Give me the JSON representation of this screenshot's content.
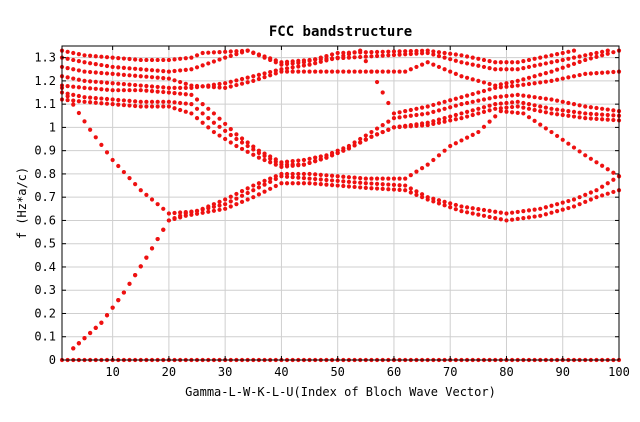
{
  "chart_data": {
    "type": "scatter",
    "title": "FCC bandstructure",
    "xlabel": "Gamma-L-W-K-L-U(Index of Bloch Wave Vector)",
    "ylabel": "f (Hz*a/c)",
    "xlim": [
      1,
      100
    ],
    "ylim": [
      0,
      1.35
    ],
    "xticks": [
      10,
      20,
      30,
      40,
      50,
      60,
      70,
      80,
      90,
      100
    ],
    "yticks": [
      0,
      0.1,
      0.2,
      0.3,
      0.4,
      0.5,
      0.6,
      0.7,
      0.8,
      0.9,
      1,
      1.1,
      1.2,
      1.3
    ],
    "grid": true,
    "marker_color": "#ee1111",
    "series": [
      {
        "values": [
          [
            1,
            0
          ],
          [
            12,
            0
          ],
          [
            25,
            0
          ],
          [
            40,
            0
          ],
          [
            55,
            0
          ],
          [
            70,
            0
          ],
          [
            85,
            0
          ],
          [
            100,
            0
          ]
        ]
      },
      {
        "values": [
          [
            3,
            0.05
          ],
          [
            8,
            0.16
          ],
          [
            12,
            0.29
          ],
          [
            16,
            0.44
          ],
          [
            20,
            0.6
          ],
          [
            23,
            0.62
          ],
          [
            30,
            0.65
          ],
          [
            35,
            0.7
          ],
          [
            40,
            0.76
          ],
          [
            45,
            0.76
          ],
          [
            50,
            0.75
          ],
          [
            55,
            0.74
          ],
          [
            62,
            0.73
          ],
          [
            66,
            0.69
          ],
          [
            72,
            0.64
          ],
          [
            80,
            0.6
          ],
          [
            86,
            0.62
          ],
          [
            92,
            0.66
          ],
          [
            96,
            0.7
          ],
          [
            100,
            0.73
          ]
        ]
      },
      {
        "values": [
          [
            3,
            0.05
          ],
          [
            8,
            0.16
          ],
          [
            12,
            0.29
          ],
          [
            16,
            0.44
          ],
          [
            20,
            0.6
          ],
          [
            23,
            0.63
          ],
          [
            30,
            0.67
          ],
          [
            35,
            0.73
          ],
          [
            40,
            0.79
          ],
          [
            45,
            0.78
          ],
          [
            50,
            0.77
          ],
          [
            55,
            0.76
          ],
          [
            62,
            0.75
          ],
          [
            66,
            0.7
          ],
          [
            72,
            0.66
          ],
          [
            80,
            0.63
          ],
          [
            86,
            0.65
          ],
          [
            92,
            0.69
          ],
          [
            96,
            0.73
          ],
          [
            100,
            0.79
          ]
        ]
      },
      {
        "values": [
          [
            1,
            1.17
          ],
          [
            6,
            0.99
          ],
          [
            10,
            0.86
          ],
          [
            15,
            0.73
          ],
          [
            20,
            0.63
          ],
          [
            25,
            0.64
          ],
          [
            30,
            0.69
          ],
          [
            35,
            0.75
          ],
          [
            40,
            0.8
          ],
          [
            45,
            0.8
          ],
          [
            50,
            0.79
          ],
          [
            55,
            0.78
          ],
          [
            62,
            0.78
          ],
          [
            66,
            0.84
          ],
          [
            70,
            0.92
          ],
          [
            75,
            0.98
          ],
          [
            79,
            1.07
          ],
          [
            83,
            1.06
          ],
          [
            88,
            0.98
          ],
          [
            94,
            0.88
          ],
          [
            100,
            0.79
          ]
        ]
      },
      {
        "values": [
          [
            1,
            1.12
          ],
          [
            5,
            1.11
          ],
          [
            10,
            1.1
          ],
          [
            15,
            1.09
          ],
          [
            20,
            1.09
          ],
          [
            24,
            1.06
          ],
          [
            28,
            0.98
          ],
          [
            32,
            0.92
          ],
          [
            36,
            0.87
          ],
          [
            40,
            0.83
          ],
          [
            44,
            0.84
          ],
          [
            48,
            0.87
          ],
          [
            52,
            0.91
          ],
          [
            56,
            0.96
          ],
          [
            60,
            1.0
          ],
          [
            66,
            1.01
          ],
          [
            72,
            1.04
          ],
          [
            78,
            1.08
          ],
          [
            82,
            1.09
          ],
          [
            88,
            1.06
          ],
          [
            94,
            1.04
          ],
          [
            100,
            1.03
          ]
        ]
      },
      {
        "values": [
          [
            1,
            1.15
          ],
          [
            5,
            1.13
          ],
          [
            10,
            1.12
          ],
          [
            15,
            1.11
          ],
          [
            20,
            1.11
          ],
          [
            24,
            1.1
          ],
          [
            28,
            1.02
          ],
          [
            32,
            0.95
          ],
          [
            36,
            0.89
          ],
          [
            40,
            0.84
          ],
          [
            44,
            0.84
          ],
          [
            48,
            0.87
          ],
          [
            52,
            0.91
          ],
          [
            56,
            0.96
          ],
          [
            60,
            1.0
          ],
          [
            66,
            1.02
          ],
          [
            72,
            1.06
          ],
          [
            78,
            1.1
          ],
          [
            82,
            1.11
          ],
          [
            88,
            1.08
          ],
          [
            94,
            1.06
          ],
          [
            100,
            1.05
          ]
        ]
      },
      {
        "values": [
          [
            1,
            1.18
          ],
          [
            5,
            1.17
          ],
          [
            10,
            1.16
          ],
          [
            15,
            1.16
          ],
          [
            20,
            1.15
          ],
          [
            24,
            1.14
          ],
          [
            28,
            1.06
          ],
          [
            32,
            0.97
          ],
          [
            36,
            0.9
          ],
          [
            40,
            0.85
          ],
          [
            44,
            0.86
          ],
          [
            48,
            0.88
          ],
          [
            52,
            0.92
          ],
          [
            56,
            0.98
          ],
          [
            60,
            1.04
          ],
          [
            66,
            1.06
          ],
          [
            72,
            1.1
          ],
          [
            78,
            1.13
          ],
          [
            82,
            1.14
          ],
          [
            88,
            1.12
          ],
          [
            94,
            1.09
          ],
          [
            100,
            1.07
          ]
        ]
      },
      {
        "values": [
          [
            1,
            1.22
          ],
          [
            5,
            1.2
          ],
          [
            10,
            1.19
          ],
          [
            15,
            1.18
          ],
          [
            20,
            1.17
          ],
          [
            24,
            1.17
          ],
          [
            30,
            1.19
          ],
          [
            35,
            1.22
          ],
          [
            40,
            1.25
          ],
          [
            45,
            1.27
          ],
          [
            50,
            1.3
          ],
          [
            54,
            1.33
          ],
          [
            60,
            1.06
          ],
          [
            66,
            1.09
          ],
          [
            72,
            1.13
          ],
          [
            78,
            1.17
          ],
          [
            82,
            1.18
          ],
          [
            88,
            1.2
          ],
          [
            94,
            1.23
          ],
          [
            100,
            1.24
          ]
        ]
      },
      {
        "values": [
          [
            1,
            1.26
          ],
          [
            5,
            1.24
          ],
          [
            10,
            1.23
          ],
          [
            15,
            1.22
          ],
          [
            20,
            1.21
          ],
          [
            24,
            1.18
          ],
          [
            30,
            1.17
          ],
          [
            35,
            1.2
          ],
          [
            40,
            1.24
          ],
          [
            45,
            1.24
          ],
          [
            50,
            1.24
          ],
          [
            55,
            1.24
          ],
          [
            62,
            1.24
          ],
          [
            66,
            1.28
          ],
          [
            72,
            1.22
          ],
          [
            78,
            1.18
          ],
          [
            82,
            1.2
          ],
          [
            88,
            1.24
          ],
          [
            94,
            1.29
          ],
          [
            100,
            1.33
          ]
        ]
      },
      {
        "values": [
          [
            1,
            1.3
          ],
          [
            5,
            1.28
          ],
          [
            10,
            1.26
          ],
          [
            15,
            1.25
          ],
          [
            20,
            1.24
          ],
          [
            24,
            1.25
          ],
          [
            30,
            1.3
          ],
          [
            34,
            1.33
          ],
          [
            40,
            1.28
          ],
          [
            45,
            1.29
          ],
          [
            66,
            1.32
          ],
          [
            72,
            1.28
          ],
          [
            78,
            1.25
          ],
          [
            82,
            1.25
          ],
          [
            88,
            1.28
          ],
          [
            94,
            1.31
          ],
          [
            98,
            1.33
          ]
        ]
      },
      {
        "values": [
          [
            1,
            1.33
          ],
          [
            5,
            1.31
          ],
          [
            10,
            1.3
          ],
          [
            15,
            1.29
          ],
          [
            20,
            1.29
          ],
          [
            24,
            1.3
          ],
          [
            26,
            1.32
          ],
          [
            34,
            1.33
          ],
          [
            40,
            1.27
          ],
          [
            44,
            1.28
          ],
          [
            50,
            1.32
          ],
          [
            66,
            1.33
          ],
          [
            72,
            1.31
          ],
          [
            78,
            1.28
          ],
          [
            82,
            1.28
          ],
          [
            88,
            1.31
          ],
          [
            92,
            1.33
          ]
        ]
      }
    ]
  }
}
